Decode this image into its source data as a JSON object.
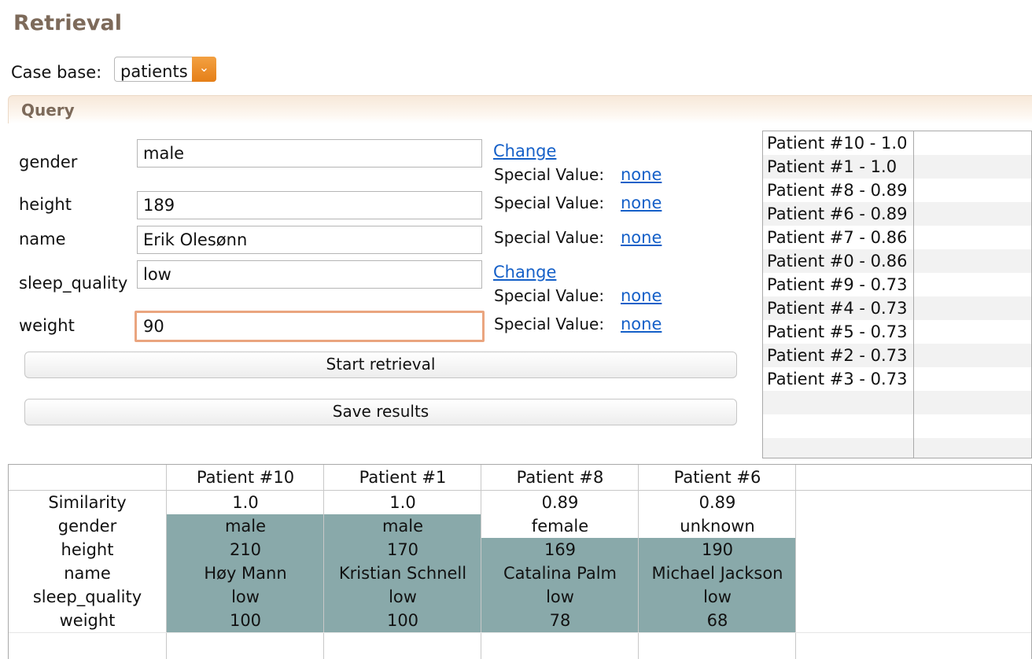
{
  "page": {
    "title": "Retrieval"
  },
  "casebase": {
    "label": "Case base:",
    "value": "patients",
    "dropdown_icon": "chevron-down-icon"
  },
  "query": {
    "section_title": "Query",
    "change_label": "Change",
    "special_value_label": "Special Value:",
    "special_value": "none",
    "fields": [
      {
        "label": "gender",
        "value": "male"
      },
      {
        "label": "height",
        "value": "189"
      },
      {
        "label": "name",
        "value": "Erik Olesønn"
      },
      {
        "label": "sleep_quality",
        "value": "low"
      },
      {
        "label": "weight",
        "value": "90"
      }
    ],
    "start_button": "Start retrieval",
    "save_button": "Save results"
  },
  "results_list": [
    "Patient #10 - 1.0",
    "Patient #1 - 1.0",
    "Patient #8 - 0.89",
    "Patient #6 - 0.89",
    "Patient #7 - 0.86",
    "Patient #0 - 0.86",
    "Patient #9 - 0.73",
    "Patient #4 - 0.73",
    "Patient #5 - 0.73",
    "Patient #2 - 0.73",
    "Patient #3 - 0.73"
  ],
  "table": {
    "columns": [
      "Patient #10",
      "Patient #1",
      "Patient #8",
      "Patient #6"
    ],
    "rows": [
      {
        "label": "Similarity",
        "values": [
          "1.0",
          "1.0",
          "0.89",
          "0.89"
        ]
      },
      {
        "label": "gender",
        "values": [
          "male",
          "male",
          "female",
          "unknown"
        ]
      },
      {
        "label": "height",
        "values": [
          "210",
          "170",
          "169",
          "190"
        ]
      },
      {
        "label": "name",
        "values": [
          "Høy Mann",
          "Kristian Schnell",
          "Catalina Palm",
          "Michael Jackson"
        ]
      },
      {
        "label": "sleep_quality",
        "values": [
          "low",
          "low",
          "low",
          "low"
        ]
      },
      {
        "label": "weight",
        "values": [
          "100",
          "100",
          "78",
          "68"
        ]
      }
    ],
    "highlight_color": "#89a9aa"
  }
}
